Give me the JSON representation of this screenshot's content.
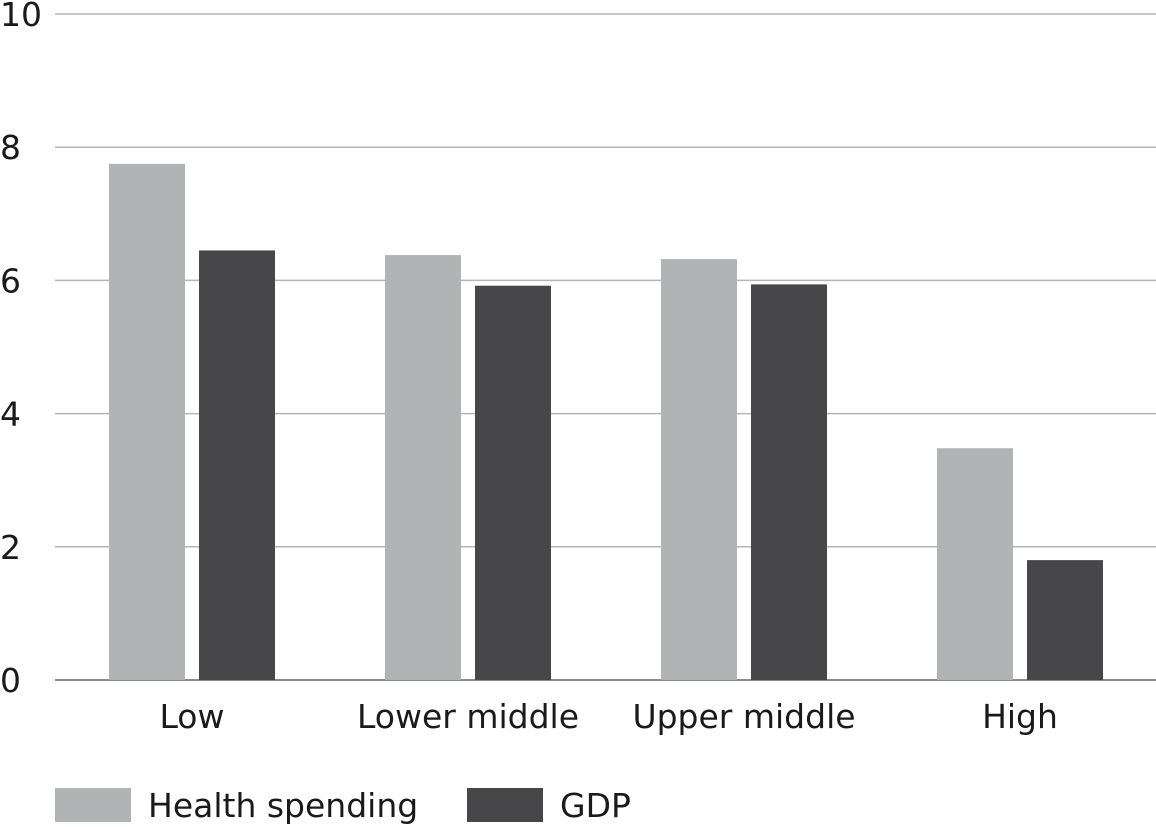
{
  "chart_data": {
    "type": "bar",
    "title": "",
    "xlabel": "",
    "ylabel": "",
    "categories": [
      "Low",
      "Lower middle",
      "Upper middle",
      "High"
    ],
    "series": [
      {
        "name": "Health spending",
        "values": [
          7.75,
          6.38,
          6.32,
          3.48
        ],
        "color": "#b2b3b5"
      },
      {
        "name": "GDP",
        "values": [
          6.45,
          5.92,
          5.94,
          1.8
        ],
        "color": "#474749"
      }
    ],
    "ylim": [
      0,
      10
    ],
    "yticks": [
      "0",
      "2",
      "4",
      "6",
      "8",
      "10"
    ],
    "grid": true,
    "legend_position": "bottom-left"
  }
}
